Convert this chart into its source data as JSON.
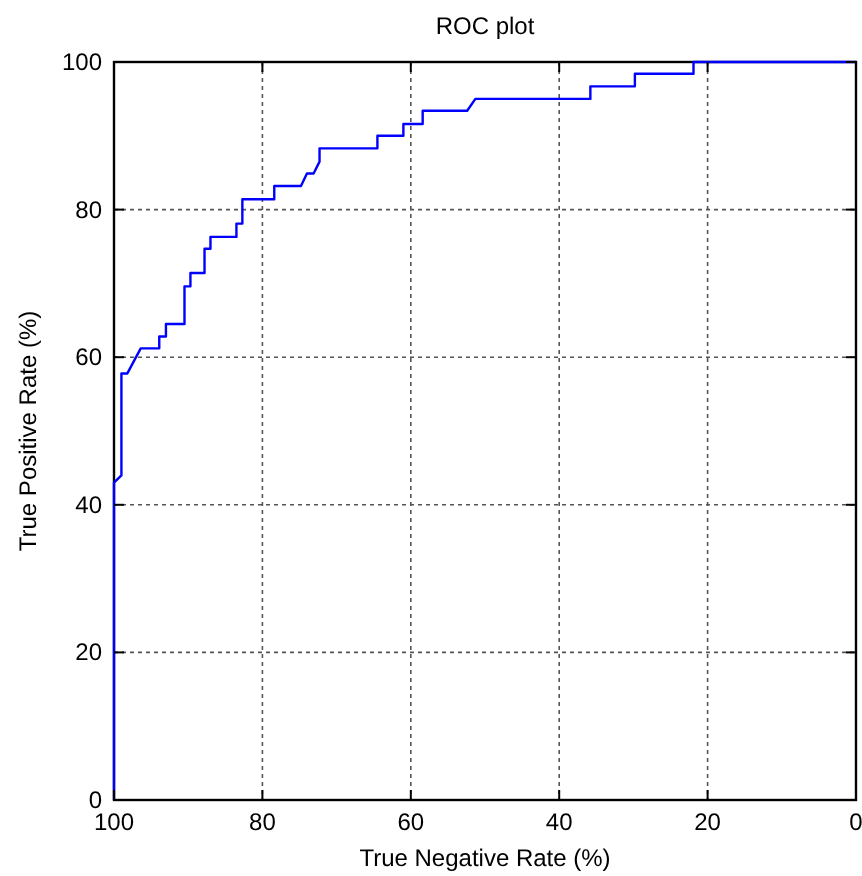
{
  "chart_data": {
    "type": "line",
    "title": "ROC plot",
    "xlabel": "True Negative Rate (%)",
    "ylabel": "True Positive Rate (%)",
    "xlim": [
      100,
      0
    ],
    "ylim": [
      0,
      100
    ],
    "xticks": [
      100,
      80,
      60,
      40,
      20,
      0
    ],
    "yticks": [
      0,
      20,
      40,
      60,
      80,
      100
    ],
    "grid": true,
    "series": [
      {
        "color": "#0000ff",
        "x": [
          100,
          100,
          99.0,
          99.0,
          98.2,
          96.4,
          93.9,
          93.9,
          93.0,
          93.0,
          90.5,
          90.5,
          89.7,
          89.7,
          87.8,
          87.8,
          87.0,
          87.0,
          83.5,
          83.5,
          82.7,
          82.7,
          78.4,
          78.4,
          74.8,
          74.0,
          73.1,
          72.3,
          72.3,
          64.5,
          64.5,
          61.0,
          61.0,
          58.4,
          58.4,
          52.4,
          51.3,
          35.8,
          35.8,
          29.8,
          29.8,
          21.9,
          21.9,
          0
        ],
        "values": [
          0,
          43,
          44,
          57.8,
          57.8,
          61.2,
          61.2,
          62.8,
          62.8,
          64.5,
          64.5,
          69.6,
          69.6,
          71.4,
          71.4,
          74.7,
          74.7,
          76.3,
          76.3,
          78.1,
          78.1,
          81.4,
          81.4,
          83.2,
          83.2,
          84.9,
          84.9,
          86.5,
          88.3,
          88.3,
          90.0,
          90.0,
          91.6,
          91.6,
          93.4,
          93.4,
          95.0,
          95.0,
          96.7,
          96.7,
          98.4,
          98.4,
          100,
          100
        ]
      }
    ]
  }
}
